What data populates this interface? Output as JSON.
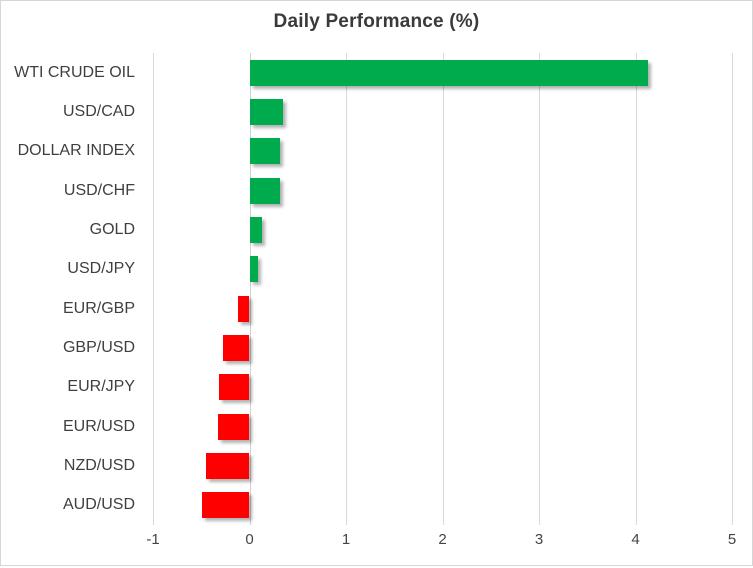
{
  "chart_data": {
    "type": "bar",
    "orientation": "horizontal",
    "title": "Daily Performance (%)",
    "categories": [
      "WTI CRUDE OIL",
      "USD/CAD",
      "DOLLAR INDEX",
      "USD/CHF",
      "GOLD",
      "USD/JPY",
      "EUR/GBP",
      "GBP/USD",
      "EUR/JPY",
      "EUR/USD",
      "NZD/USD",
      "AUD/USD"
    ],
    "values": [
      4.13,
      0.35,
      0.32,
      0.32,
      0.13,
      0.09,
      -0.12,
      -0.27,
      -0.32,
      -0.33,
      -0.45,
      -0.49
    ],
    "xlim": [
      -1,
      5
    ],
    "xticks": [
      -1,
      0,
      1,
      2,
      3,
      4,
      5
    ],
    "grid": true,
    "legend": "none",
    "xlabel": "",
    "ylabel": "",
    "positive_color": "#00AB4E",
    "negative_color": "#FE0000",
    "gridline_color": "#D9D9D9",
    "zero_line_color": "#D0D0D0",
    "text_color": "#3F3F3F"
  }
}
